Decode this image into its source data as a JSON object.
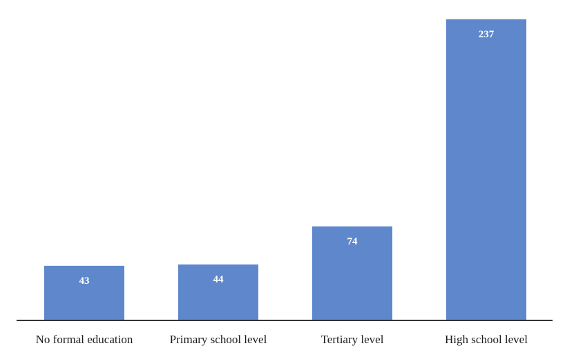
{
  "chart_data": {
    "type": "bar",
    "categories": [
      "No formal education",
      "Primary school level",
      "Tertiary level",
      "High school level"
    ],
    "values": [
      43,
      44,
      74,
      237
    ],
    "title": "",
    "xlabel": "",
    "ylabel": "",
    "ylim": [
      0,
      240
    ],
    "grid": false,
    "legend": "none",
    "data_labels": [
      "43",
      "44",
      "74",
      "237"
    ],
    "bar_color": "#5f87cc",
    "axis_color": "#333333"
  }
}
